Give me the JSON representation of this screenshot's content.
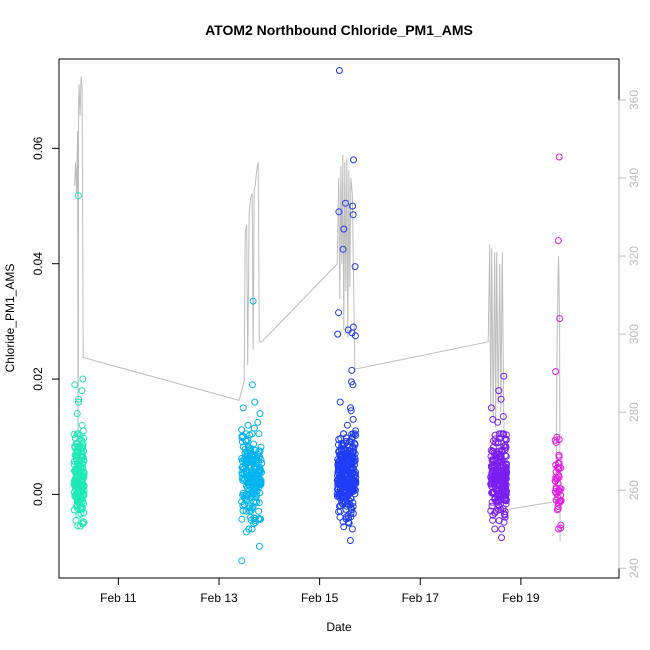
{
  "chart_data": {
    "type": "scatter",
    "title": "ATOM2 Northbound Chloride_PM1_AMS",
    "xlabel": "Date",
    "ylabel": "Chloride_PM1_AMS",
    "x_ticks": [
      "Feb 11",
      "Feb 13",
      "Feb 15",
      "Feb 17",
      "Feb 19"
    ],
    "x_tick_days": [
      11,
      13,
      15,
      17,
      19
    ],
    "xlim_days": [
      9.82,
      20.95
    ],
    "ylim": [
      -0.0145,
      0.0755
    ],
    "y_ticks": [
      0.0,
      0.02,
      0.04,
      0.06
    ],
    "y_tick_labels": [
      "0.00",
      "0.02",
      "0.04",
      "0.06"
    ],
    "y2lim": [
      237.5,
      370.5
    ],
    "y2_ticks": [
      240,
      260,
      280,
      300,
      320,
      340,
      360
    ],
    "y2_tick_labels": [
      "240",
      "260",
      "280",
      "300",
      "320",
      "340",
      "360"
    ],
    "grid": false,
    "colors": {
      "secondary_line": "#bdbdbd",
      "axis": "#000000",
      "right_axis": "#bdbdbd"
    },
    "series": [
      {
        "color": "#1de9b6",
        "day_range": [
          10.12,
          10.32
        ],
        "cluster_count": 170,
        "cluster_center": 0.003,
        "cluster_spread": 0.0035,
        "outliers": [
          0.0518,
          0.02,
          0.019,
          0.018,
          0.0165,
          0.016,
          0.014,
          0.012,
          0.011,
          0.0105,
          0.0102,
          -0.0045,
          -0.0055
        ]
      },
      {
        "color": "#00b4f0",
        "day_range": [
          13.45,
          13.85
        ],
        "cluster_count": 220,
        "cluster_center": 0.003,
        "cluster_spread": 0.0035,
        "outliers": [
          0.0335,
          0.019,
          0.016,
          0.015,
          0.014,
          0.0125,
          0.012,
          0.0115,
          0.0112,
          -0.006,
          -0.0065,
          -0.009,
          -0.0115
        ]
      },
      {
        "color": "#1f3cf5",
        "day_range": [
          15.35,
          15.72
        ],
        "cluster_count": 280,
        "cluster_center": 0.003,
        "cluster_spread": 0.0038,
        "outliers": [
          0.0735,
          0.058,
          0.0505,
          0.05,
          0.049,
          0.0485,
          0.046,
          0.0425,
          0.0395,
          0.0315,
          0.029,
          0.0285,
          0.028,
          0.0278,
          0.0275,
          0.0215,
          0.0195,
          0.019,
          0.016,
          0.015,
          0.0145,
          0.013,
          0.012,
          0.011,
          -0.005,
          -0.008
        ]
      },
      {
        "color": "#7a1ff0",
        "day_range": [
          18.4,
          18.72
        ],
        "cluster_count": 240,
        "cluster_center": 0.003,
        "cluster_spread": 0.0035,
        "outliers": [
          0.0205,
          0.018,
          0.0165,
          0.015,
          0.0135,
          0.013,
          0.0125,
          -0.0045,
          -0.0075
        ]
      },
      {
        "color": "#e81ae8",
        "day_range": [
          19.68,
          19.8
        ],
        "cluster_count": 40,
        "cluster_center": 0.003,
        "cluster_spread": 0.003,
        "outliers": [
          0.0585,
          0.044,
          0.0305,
          0.0213,
          0.0095,
          0.009,
          0.0068,
          0.0065,
          -0.0025
        ]
      }
    ],
    "secondary_line": [
      [
        10.13,
        338
      ],
      [
        10.15,
        344
      ],
      [
        10.17,
        336
      ],
      [
        10.19,
        352
      ],
      [
        10.2,
        262
      ],
      [
        10.21,
        358
      ],
      [
        10.22,
        364
      ],
      [
        10.24,
        356
      ],
      [
        10.26,
        366
      ],
      [
        10.28,
        363
      ],
      [
        10.3,
        294
      ],
      [
        13.4,
        283
      ],
      [
        13.5,
        288
      ],
      [
        13.52,
        326
      ],
      [
        13.55,
        328
      ],
      [
        13.57,
        292
      ],
      [
        13.6,
        331
      ],
      [
        13.63,
        335
      ],
      [
        13.66,
        336
      ],
      [
        13.68,
        296
      ],
      [
        13.7,
        337
      ],
      [
        13.72,
        338
      ],
      [
        13.75,
        342
      ],
      [
        13.78,
        344
      ],
      [
        13.8,
        298
      ],
      [
        13.85,
        298
      ],
      [
        15.35,
        318
      ],
      [
        15.38,
        340
      ],
      [
        15.4,
        309
      ],
      [
        15.42,
        343
      ],
      [
        15.44,
        318
      ],
      [
        15.46,
        346
      ],
      [
        15.48,
        301
      ],
      [
        15.5,
        344
      ],
      [
        15.52,
        311
      ],
      [
        15.54,
        345
      ],
      [
        15.56,
        299
      ],
      [
        15.58,
        342
      ],
      [
        15.6,
        312
      ],
      [
        15.62,
        340
      ],
      [
        15.65,
        336
      ],
      [
        15.68,
        310
      ],
      [
        15.7,
        291
      ],
      [
        18.35,
        298
      ],
      [
        18.38,
        323
      ],
      [
        18.4,
        280
      ],
      [
        18.42,
        322
      ],
      [
        18.45,
        278
      ],
      [
        18.48,
        321
      ],
      [
        18.5,
        276
      ],
      [
        18.52,
        321
      ],
      [
        18.55,
        282
      ],
      [
        18.58,
        318
      ],
      [
        18.6,
        280
      ],
      [
        18.63,
        321
      ],
      [
        18.66,
        278
      ],
      [
        18.7,
        255
      ],
      [
        19.65,
        257
      ],
      [
        19.7,
        260
      ],
      [
        19.72,
        298
      ],
      [
        19.74,
        315
      ],
      [
        19.75,
        320
      ],
      [
        19.77,
        302
      ],
      [
        19.78,
        247
      ]
    ]
  }
}
